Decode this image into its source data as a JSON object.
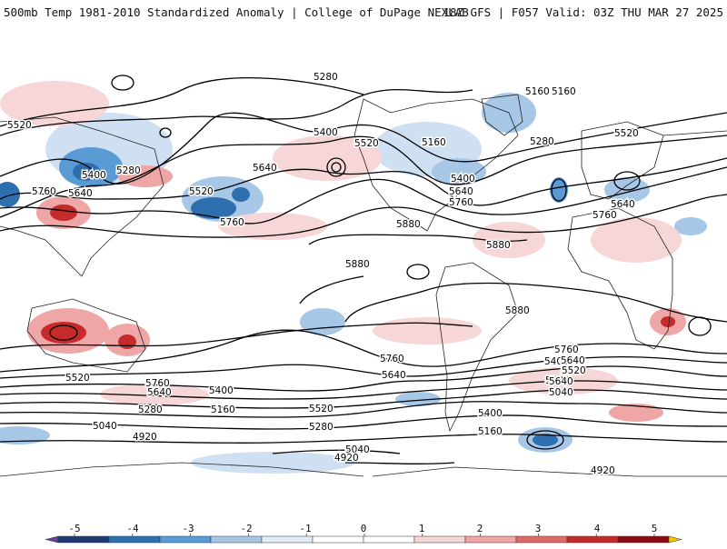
{
  "header": {
    "title": "500mb Temp 1981-2010 Standardized Anomaly | College of DuPage NEXLAB",
    "run_info": "18Z GFS | F057 Valid: 03Z THU MAR 27 2025"
  },
  "map": {
    "projection": "global cylindrical",
    "contour_field": "500mb height (dam contours)",
    "contour_labels": [
      "5280",
      "5160",
      "5160",
      "5520",
      "5400",
      "5280",
      "5760",
      "5640",
      "5520",
      "5400",
      "5640",
      "5760",
      "5520",
      "5160",
      "5400",
      "5640",
      "5760",
      "5880",
      "5880",
      "5880",
      "5280",
      "5520",
      "5640",
      "5760",
      "5880",
      "5760",
      "5640",
      "5520",
      "5400",
      "5280",
      "5160",
      "5040",
      "4920",
      "5760",
      "5640",
      "5520",
      "5400",
      "5280",
      "5040",
      "5160",
      "5400",
      "5520",
      "5640",
      "5760",
      "5040",
      "4920",
      "4920",
      "5280",
      "5520",
      "5640"
    ]
  },
  "colorbar": {
    "ticks": [
      "-5",
      "-4",
      "-3",
      "-2",
      "-1",
      "0",
      "1",
      "2",
      "3",
      "4",
      "5"
    ],
    "colors": [
      "#6a3fa0",
      "#1f3b73",
      "#2e6fb0",
      "#5b9bd5",
      "#a7c7e7",
      "#e1ecf7",
      "#ffffff",
      "#ffffff",
      "#f6d6d6",
      "#eea6a6",
      "#dd6a6a",
      "#c52b2b",
      "#8b0a14",
      "#f5c400"
    ]
  }
}
